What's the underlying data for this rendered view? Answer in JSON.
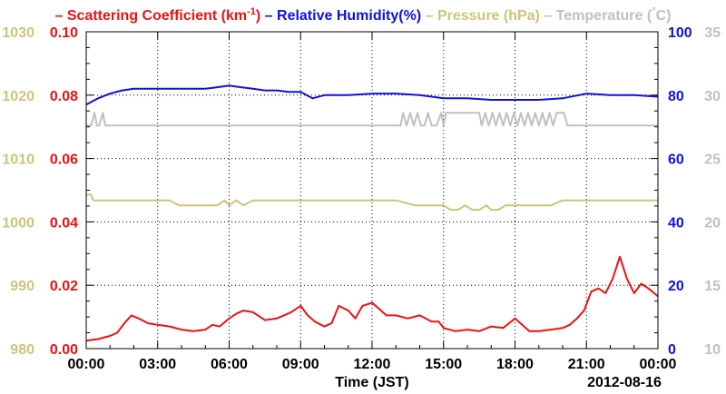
{
  "chart_data": {
    "type": "line",
    "x_range": [
      "00:00",
      "24:00"
    ],
    "x_tick_labels": [
      "00:00",
      "03:00",
      "06:00",
      "09:00",
      "12:00",
      "15:00",
      "18:00",
      "21:00",
      "00:00"
    ],
    "xlabel": "Time (JST)",
    "date_label": "2012-08-16",
    "grid": true,
    "colors": {
      "scattering": "#ee1111",
      "humidity": "#1111dd",
      "pressure": "#ccc47a",
      "temperature": "#c0c0c0",
      "grid": "#000000",
      "left_outer_axis": "#ccc47a",
      "left_inner_axis": "#ee1111",
      "right_inner_axis": "#1111dd",
      "right_outer_axis": "#c0c0c0"
    },
    "axes": {
      "pressure": {
        "range": [
          980,
          1030
        ],
        "ticks": [
          "980",
          "990",
          "1000",
          "1010",
          "1020",
          "1030"
        ]
      },
      "scattering": {
        "range": [
          0,
          0.1
        ],
        "ticks": [
          "0.00",
          "0.02",
          "0.04",
          "0.06",
          "0.08",
          "0.10"
        ]
      },
      "humidity": {
        "range": [
          0,
          100
        ],
        "ticks": [
          "0",
          "20",
          "40",
          "60",
          "80",
          "100"
        ]
      },
      "temperature": {
        "range": [
          10,
          35
        ],
        "ticks": [
          "10",
          "15",
          "20",
          "25",
          "30",
          "35"
        ]
      }
    },
    "legend": [
      {
        "prefix": "– ",
        "label": "Scattering Coefficient (km",
        "superscript": "-1",
        "suffix": ")",
        "key": "scattering"
      },
      {
        "prefix": " – ",
        "label": "Relative Humidity(%)",
        "superscript": "",
        "suffix": "",
        "key": "humidity"
      },
      {
        "prefix": " – ",
        "label": "Pressure (hPa)",
        "superscript": "",
        "suffix": "",
        "key": "pressure"
      },
      {
        "prefix": " – ",
        "label": "Temperature (",
        "superscript": "°",
        "suffix": "C)",
        "key": "temperature"
      }
    ],
    "series": [
      {
        "name": "Scattering Coefficient",
        "axis": "scattering",
        "x_hours": [
          0,
          0.5,
          1,
          1.3,
          1.6,
          1.9,
          2.2,
          2.6,
          3,
          3.5,
          4,
          4.5,
          5,
          5.3,
          5.6,
          6,
          6.3,
          6.6,
          7,
          7.5,
          8,
          8.3,
          8.6,
          9,
          9.3,
          9.6,
          10,
          10.3,
          10.6,
          11,
          11.3,
          11.6,
          12,
          12.3,
          12.6,
          13,
          13.5,
          14,
          14.5,
          14.8,
          15,
          15.5,
          16,
          16.5,
          17,
          17.5,
          18,
          18.3,
          18.6,
          19,
          19.5,
          20,
          20.3,
          20.6,
          20.9,
          21.2,
          21.5,
          21.8,
          22.1,
          22.4,
          22.7,
          23,
          23.3,
          23.6,
          24
        ],
        "values": [
          0.0025,
          0.003,
          0.004,
          0.005,
          0.008,
          0.0105,
          0.0095,
          0.008,
          0.0075,
          0.007,
          0.006,
          0.0055,
          0.006,
          0.0075,
          0.007,
          0.0095,
          0.011,
          0.012,
          0.0115,
          0.009,
          0.0095,
          0.0105,
          0.0115,
          0.0135,
          0.0105,
          0.0085,
          0.007,
          0.008,
          0.0135,
          0.012,
          0.0095,
          0.0135,
          0.0145,
          0.0125,
          0.0105,
          0.0105,
          0.0095,
          0.0105,
          0.0085,
          0.0085,
          0.0065,
          0.0055,
          0.006,
          0.0055,
          0.007,
          0.0065,
          0.0095,
          0.0075,
          0.0055,
          0.0055,
          0.006,
          0.0065,
          0.0075,
          0.0095,
          0.012,
          0.018,
          0.019,
          0.0175,
          0.022,
          0.029,
          0.022,
          0.0175,
          0.0205,
          0.019,
          0.0165
        ]
      },
      {
        "name": "Relative Humidity(%)",
        "axis": "humidity",
        "x_hours": [
          0,
          0.5,
          1,
          1.5,
          2,
          3,
          4,
          5,
          5.5,
          6,
          6.5,
          7,
          7.5,
          8,
          8.5,
          9,
          9.5,
          10,
          11,
          12,
          13,
          14,
          15,
          16,
          17,
          18,
          19,
          20,
          21,
          22,
          23,
          24
        ],
        "values": [
          77,
          79,
          80.5,
          81.5,
          82,
          82,
          82,
          82,
          82.5,
          83,
          82.5,
          82,
          81.5,
          81.5,
          81,
          81,
          79,
          80,
          80,
          80.5,
          80.5,
          80,
          79,
          79,
          78.5,
          78.5,
          78.5,
          79,
          80.5,
          80,
          80,
          79.5
        ]
      },
      {
        "name": "Pressure (hPa)",
        "axis": "pressure",
        "x_hours": [
          0,
          0.2,
          0.3,
          2,
          3,
          3.5,
          3.9,
          4.5,
          5,
          5.5,
          5.8,
          6,
          6.3,
          6.6,
          7,
          8,
          9,
          10,
          11,
          12,
          13,
          13.8,
          14,
          15,
          15.3,
          15.6,
          15.9,
          16.2,
          16.5,
          16.8,
          17,
          17.3,
          17.6,
          18,
          19,
          19.5,
          20,
          21,
          22,
          23,
          24
        ],
        "values": [
          1004.3,
          1004.3,
          1003.4,
          1003.4,
          1003.4,
          1003.4,
          1002.6,
          1002.6,
          1002.6,
          1002.6,
          1003.4,
          1002.6,
          1003.4,
          1002.6,
          1003.4,
          1003.4,
          1003.4,
          1003.4,
          1003.4,
          1003.4,
          1003.4,
          1002.6,
          1002.6,
          1002.6,
          1001.9,
          1001.9,
          1002.6,
          1001.9,
          1001.9,
          1002.6,
          1001.9,
          1001.9,
          1002.6,
          1002.6,
          1002.6,
          1002.6,
          1003.4,
          1003.4,
          1003.4,
          1003.4,
          1003.4
        ]
      },
      {
        "name": "Temperature (°C)",
        "axis": "temperature",
        "x_hours": [
          0,
          0.2,
          0.35,
          0.45,
          0.55,
          0.7,
          0.8,
          0.9,
          1.0,
          13.2,
          13.3,
          13.45,
          13.6,
          13.75,
          13.9,
          14.05,
          14.2,
          14.35,
          14.5,
          14.7,
          14.9,
          15.0,
          15.1,
          15.3,
          15.5,
          16.5,
          16.6,
          16.75,
          16.9,
          17.05,
          17.2,
          17.35,
          17.5,
          17.65,
          17.8,
          17.95,
          18.1,
          18.25,
          18.4,
          18.55,
          18.7,
          18.85,
          19.0,
          19.15,
          19.3,
          19.45,
          19.6,
          19.75,
          19.9,
          20.05,
          20.2,
          24
        ],
        "values": [
          27.6,
          27.6,
          28.6,
          27.6,
          27.6,
          28.6,
          27.6,
          27.6,
          27.6,
          27.6,
          28.6,
          27.6,
          28.6,
          27.6,
          28.6,
          27.6,
          27.6,
          28.6,
          27.6,
          27.6,
          28.6,
          27.6,
          28.6,
          28.6,
          28.6,
          28.6,
          27.6,
          28.6,
          27.6,
          28.6,
          27.6,
          28.6,
          27.6,
          28.6,
          27.6,
          28.6,
          27.6,
          28.6,
          27.6,
          28.6,
          27.6,
          28.6,
          27.6,
          28.6,
          27.6,
          28.6,
          27.6,
          28.6,
          28.6,
          28.6,
          27.6,
          27.6
        ]
      }
    ]
  }
}
